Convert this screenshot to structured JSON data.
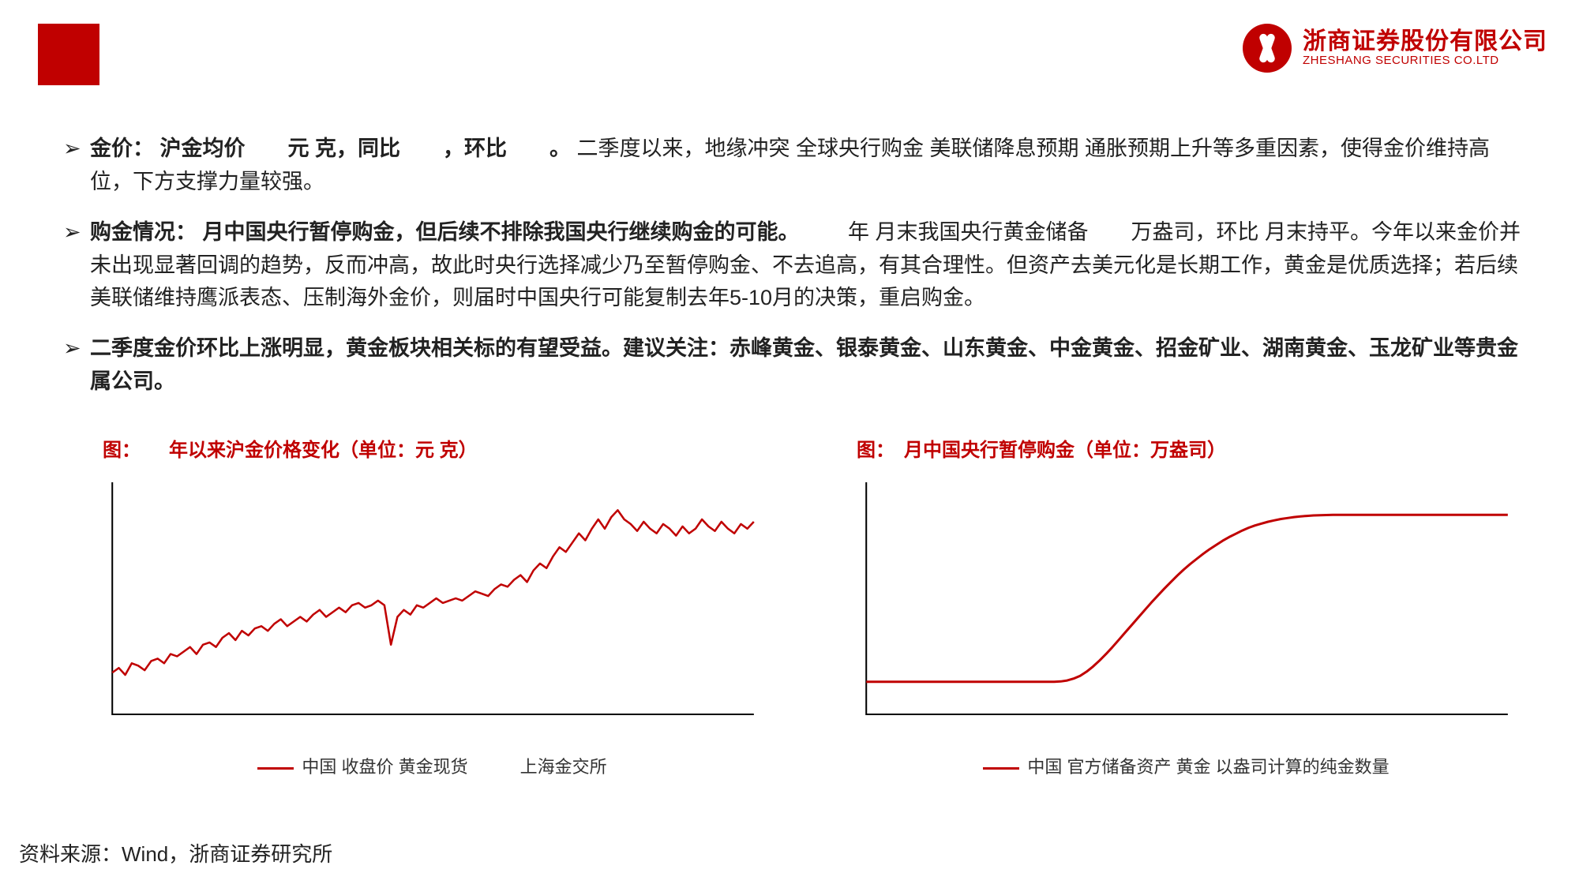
{
  "branding": {
    "company_cn": "浙商证券股份有限公司",
    "company_en": "ZHESHANG SECURITIES CO.LTD",
    "accent_color": "#c00000"
  },
  "bullets": [
    {
      "lead": "金价：",
      "bold_rest": "沪金均价　　元 克，同比　　，环比　　。",
      "tail": "二季度以来，地缘冲突 全球央行购金 美联储降息预期 通胀预期上升等多重因素，使得金价维持高位，下方支撑力量较强。"
    },
    {
      "lead": "购金情况：",
      "bold_rest": "月中国央行暂停购金，但后续不排除我国央行继续购金的可能。",
      "tail": "　　年 月末我国央行黄金储备　　万盎司，环比 月末持平。今年以来金价并未出现显著回调的趋势，反而冲高，故此时央行选择减少乃至暂停购金、不去追高，有其合理性。但资产去美元化是长期工作，黄金是优质选择；若后续美联储维持鹰派表态、压制海外金价，则届时中国央行可能复制去年5-10月的决策，重启购金。"
    },
    {
      "all_bold": "二季度金价环比上涨明显，黄金板块相关标的有望受益。建议关注：赤峰黄金、银泰黄金、山东黄金、中金黄金、招金矿业、湖南黄金、玉龙矿业等贵金属公司。"
    }
  ],
  "chart_left": {
    "title": "图：　　年以来沪金价格变化（单位：元 克）",
    "type": "line",
    "line_color": "#c00000",
    "line_width": 2.5,
    "axis_color": "#000000",
    "background_color": "#ffffff",
    "x_range": [
      0,
      100
    ],
    "y_range": [
      0,
      100
    ],
    "series_y": [
      18,
      20,
      17,
      22,
      21,
      19,
      23,
      24,
      22,
      26,
      25,
      27,
      29,
      26,
      30,
      31,
      29,
      33,
      35,
      32,
      36,
      34,
      37,
      38,
      36,
      39,
      41,
      38,
      40,
      42,
      40,
      43,
      45,
      42,
      44,
      46,
      44,
      47,
      48,
      46,
      47,
      49,
      47,
      30,
      42,
      45,
      43,
      47,
      46,
      48,
      50,
      48,
      49,
      50,
      49,
      51,
      53,
      52,
      51,
      54,
      56,
      55,
      58,
      60,
      57,
      62,
      65,
      63,
      68,
      72,
      70,
      74,
      78,
      75,
      80,
      84,
      80,
      85,
      88,
      84,
      82,
      79,
      83,
      80,
      78,
      82,
      80,
      77,
      81,
      78,
      80,
      84,
      81,
      79,
      83,
      80,
      78,
      82,
      80,
      83
    ],
    "legend": "中国 收盘价 黄金现货　　　上海金交所"
  },
  "chart_right": {
    "title": "图：　月中国央行暂停购金（单位：万盎司）",
    "type": "line",
    "line_color": "#c00000",
    "line_width": 3,
    "axis_color": "#000000",
    "background_color": "#ffffff",
    "x_range": [
      0,
      100
    ],
    "y_range": [
      0,
      100
    ],
    "series_y": [
      14,
      14,
      14,
      14,
      14,
      14,
      14,
      14,
      14,
      14,
      14,
      14,
      14,
      14,
      14,
      14,
      14,
      14,
      14,
      14,
      14,
      14,
      14,
      14,
      14,
      14,
      14,
      14,
      14,
      14,
      14.2,
      14.6,
      15.4,
      16.6,
      18.4,
      20.6,
      23.2,
      26.0,
      29.0,
      32.2,
      35.4,
      38.6,
      41.8,
      45.0,
      48.2,
      51.2,
      54.2,
      57.0,
      59.8,
      62.4,
      64.8,
      67.0,
      69.2,
      71.2,
      73.0,
      74.8,
      76.4,
      77.8,
      79.2,
      80.4,
      81.4,
      82.2,
      83.0,
      83.6,
      84.2,
      84.6,
      85.0,
      85.3,
      85.5,
      85.7,
      85.8,
      85.9,
      86.0,
      86.0,
      86.0,
      86.0,
      86.0,
      86.0,
      86.0,
      86.0,
      86.0,
      86.0,
      86.0,
      86.0,
      86.0,
      86.0,
      86.0,
      86.0,
      86.0,
      86.0,
      86.0,
      86.0,
      86.0,
      86.0,
      86.0,
      86.0,
      86.0,
      86.0,
      86.0,
      86.0
    ],
    "legend": "中国 官方储备资产 黄金 以盎司计算的纯金数量"
  },
  "source": "资料来源：Wind，浙商证券研究所"
}
